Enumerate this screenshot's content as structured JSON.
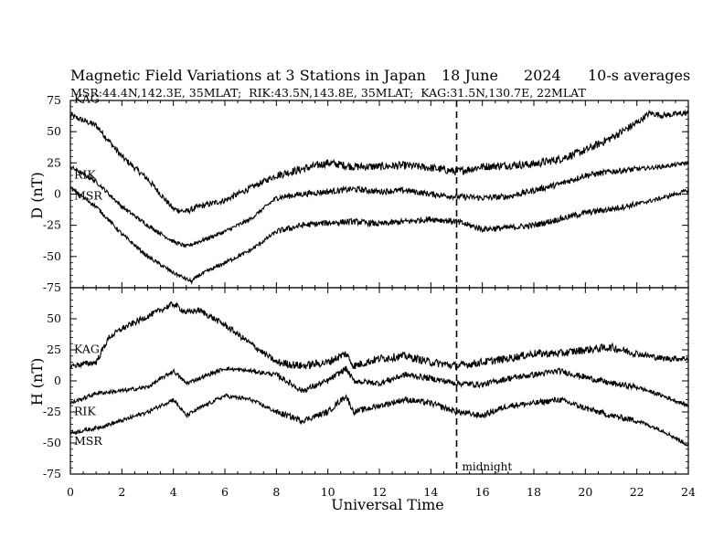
{
  "chart_data": {
    "type": "line",
    "title": "Magnetic Field Variations at 3 Stations in Japan",
    "date": "18 June",
    "year": "2024",
    "averaging": "10-s averages",
    "stations_info": "MSR:44.4N,142.3E, 35MLAT;  RIK:43.5N,143.8E, 35MLAT;  KAG:31.5N,130.7E, 22MLAT",
    "xlabel": "Universal Time",
    "xlim": [
      0,
      24
    ],
    "x_ticks": [
      "0",
      "2",
      "4",
      "6",
      "8",
      "10",
      "12",
      "14",
      "16",
      "18",
      "20",
      "22",
      "24"
    ],
    "midnight": {
      "x": 15,
      "label": "midnight"
    },
    "panels": [
      {
        "ylabel": "D (nT)",
        "ylim": [
          -75,
          75
        ],
        "y_ticks": [
          "75",
          "50",
          "25",
          "0",
          "-25",
          "-50",
          "-75"
        ],
        "series": [
          {
            "name": "KAG",
            "x": [
              0,
              1,
              2,
              3,
              4,
              4.5,
              5,
              6,
              7,
              8,
              9,
              10,
              11,
              12,
              13,
              14,
              15,
              16,
              17,
              18,
              19,
              20,
              21,
              22,
              22.5,
              23,
              24
            ],
            "values": [
              63,
              55,
              30,
              12,
              -12,
              -14,
              -10,
              -5,
              5,
              15,
              20,
              25,
              22,
              22,
              23,
              21,
              18,
              22,
              23,
              24,
              28,
              35,
              45,
              57,
              65,
              63,
              65
            ]
          },
          {
            "name": "RIK",
            "x": [
              0,
              1,
              2,
              3,
              4,
              4.5,
              5,
              6,
              7,
              8,
              9,
              10,
              11,
              12,
              13,
              14,
              15,
              16,
              17,
              18,
              19,
              20,
              21,
              22,
              23,
              24
            ],
            "values": [
              22,
              10,
              -10,
              -25,
              -38,
              -42,
              -38,
              -30,
              -20,
              -3,
              0,
              2,
              4,
              2,
              3,
              0,
              -2,
              -3,
              -2,
              3,
              8,
              15,
              18,
              20,
              22,
              25
            ]
          },
          {
            "name": "MSR",
            "x": [
              0,
              1,
              2,
              3,
              4,
              4.7,
              5,
              6,
              7,
              8,
              9,
              10,
              11,
              12,
              13,
              14,
              15,
              16,
              17,
              18,
              19,
              20,
              21,
              22,
              23,
              24
            ],
            "values": [
              5,
              -10,
              -32,
              -50,
              -63,
              -70,
              -65,
              -55,
              -45,
              -30,
              -25,
              -23,
              -22,
              -24,
              -22,
              -20,
              -22,
              -28,
              -27,
              -25,
              -20,
              -15,
              -12,
              -8,
              -3,
              3
            ]
          }
        ]
      },
      {
        "ylabel": "H (nT)",
        "ylim": [
          -75,
          75
        ],
        "y_ticks": [
          "75",
          "50",
          "25",
          "0",
          "-25",
          "-50",
          "-75"
        ],
        "series": [
          {
            "name": "KAG",
            "x": [
              0,
              1,
              1.5,
              2,
              3,
              4,
              4.5,
              5,
              6,
              7,
              8,
              9,
              10,
              10.7,
              11,
              12,
              13,
              14,
              15,
              16,
              17,
              18,
              19,
              20,
              21,
              22,
              23,
              24
            ],
            "values": [
              12,
              15,
              35,
              42,
              52,
              62,
              55,
              57,
              45,
              30,
              15,
              12,
              15,
              22,
              12,
              18,
              20,
              15,
              12,
              15,
              18,
              22,
              22,
              25,
              27,
              22,
              18,
              18
            ]
          },
          {
            "name": "RIK",
            "x": [
              0,
              1,
              2,
              3,
              4,
              4.5,
              5,
              6,
              7,
              8,
              9,
              10,
              10.7,
              11,
              12,
              13,
              14,
              15,
              16,
              17,
              18,
              19,
              20,
              21,
              22,
              23,
              24
            ],
            "values": [
              -18,
              -10,
              -8,
              -5,
              8,
              -2,
              2,
              10,
              8,
              5,
              -8,
              0,
              10,
              0,
              -2,
              5,
              2,
              -2,
              -3,
              2,
              5,
              8,
              3,
              -2,
              -5,
              -12,
              -20
            ]
          },
          {
            "name": "MSR",
            "x": [
              0,
              1,
              2,
              3,
              4,
              4.5,
              5,
              6,
              7,
              8,
              9,
              10,
              10.7,
              11,
              12,
              13,
              14,
              15,
              16,
              17,
              18,
              19,
              20,
              21,
              22,
              23,
              24
            ],
            "values": [
              -42,
              -38,
              -32,
              -25,
              -15,
              -28,
              -22,
              -12,
              -15,
              -25,
              -32,
              -25,
              -12,
              -25,
              -20,
              -15,
              -18,
              -25,
              -28,
              -20,
              -18,
              -15,
              -22,
              -28,
              -32,
              -40,
              -52
            ]
          }
        ]
      }
    ]
  }
}
